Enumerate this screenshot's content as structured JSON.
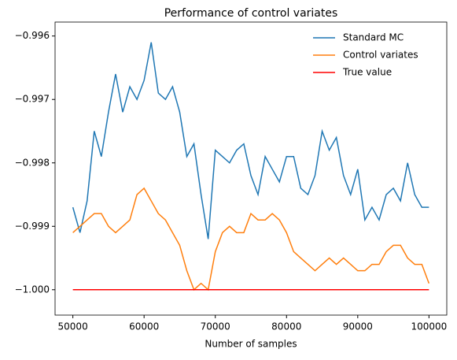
{
  "chart_data": {
    "type": "line",
    "title": "Performance of control variates",
    "xlabel": "Number of samples",
    "x": [
      50000,
      51000,
      52000,
      53000,
      54000,
      55000,
      56000,
      57000,
      58000,
      59000,
      60000,
      61000,
      62000,
      63000,
      64000,
      65000,
      66000,
      67000,
      68000,
      69000,
      70000,
      71000,
      72000,
      73000,
      74000,
      75000,
      76000,
      77000,
      78000,
      79000,
      80000,
      81000,
      82000,
      83000,
      84000,
      85000,
      86000,
      87000,
      88000,
      89000,
      90000,
      91000,
      92000,
      93000,
      94000,
      95000,
      96000,
      97000,
      98000,
      99000,
      100000
    ],
    "series": [
      {
        "name": "Standard MC",
        "color": "#1f77b4",
        "values": [
          -0.9987,
          -0.9991,
          -0.9986,
          -0.9975,
          -0.9979,
          -0.9972,
          -0.9966,
          -0.9972,
          -0.9968,
          -0.997,
          -0.9967,
          -0.9961,
          -0.9969,
          -0.997,
          -0.9968,
          -0.9972,
          -0.9979,
          -0.9977,
          -0.9985,
          -0.9992,
          -0.9978,
          -0.9979,
          -0.998,
          -0.9978,
          -0.9977,
          -0.9982,
          -0.9985,
          -0.9979,
          -0.9981,
          -0.9983,
          -0.9979,
          -0.9979,
          -0.9984,
          -0.9985,
          -0.9982,
          -0.9975,
          -0.9978,
          -0.9976,
          -0.9982,
          -0.9985,
          -0.9981,
          -0.9989,
          -0.9987,
          -0.9989,
          -0.9985,
          -0.9984,
          -0.9986,
          -0.998,
          -0.9985,
          -0.9987,
          -0.9987
        ]
      },
      {
        "name": "Control variates",
        "color": "#ff7f0e",
        "values": [
          -0.9991,
          -0.999,
          -0.9989,
          -0.9988,
          -0.9988,
          -0.999,
          -0.9991,
          -0.999,
          -0.9989,
          -0.9985,
          -0.9984,
          -0.9986,
          -0.9988,
          -0.9989,
          -0.9991,
          -0.9993,
          -0.9997,
          -1.0,
          -0.9999,
          -1.0,
          -0.9994,
          -0.9991,
          -0.999,
          -0.9991,
          -0.9991,
          -0.9988,
          -0.9989,
          -0.9989,
          -0.9988,
          -0.9989,
          -0.9991,
          -0.9994,
          -0.9995,
          -0.9996,
          -0.9997,
          -0.9996,
          -0.9995,
          -0.9996,
          -0.9995,
          -0.9996,
          -0.9997,
          -0.9997,
          -0.9996,
          -0.9996,
          -0.9994,
          -0.9993,
          -0.9993,
          -0.9995,
          -0.9996,
          -0.9996,
          -0.9999
        ]
      },
      {
        "name": "True value",
        "color": "#ff0000",
        "x": [
          50000,
          100000
        ],
        "values": [
          -1.0,
          -1.0
        ]
      }
    ],
    "xlim": [
      47500,
      102500
    ],
    "ylim": [
      -1.0004,
      -0.99578
    ],
    "xticks": [
      50000,
      60000,
      70000,
      80000,
      90000,
      100000
    ],
    "yticks": [
      {
        "value": -0.996,
        "label": "−0.996"
      },
      {
        "value": -0.997,
        "label": "−0.997"
      },
      {
        "value": -0.998,
        "label": "−0.998"
      },
      {
        "value": -0.999,
        "label": "−0.999"
      },
      {
        "value": -1.0,
        "label": "−1.000"
      }
    ],
    "legend": "upper right",
    "grid": false
  }
}
